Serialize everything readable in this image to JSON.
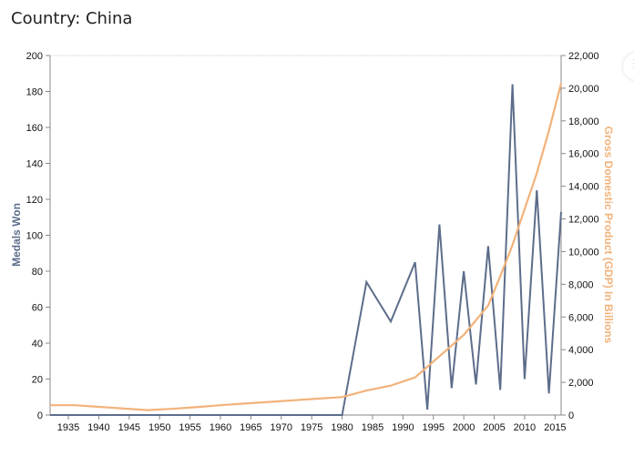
{
  "page_title": "Country: China",
  "side_handle_icon": "ellipsis-icon",
  "side_handle_glyph": "⋮",
  "chart_data": {
    "type": "line",
    "x_range": [
      1932,
      2016
    ],
    "x_ticks": [
      1935,
      1940,
      1945,
      1950,
      1955,
      1960,
      1965,
      1970,
      1975,
      1980,
      1985,
      1990,
      1995,
      2000,
      2005,
      2010,
      2015
    ],
    "y_left": {
      "label": "Medals Won",
      "range": [
        0,
        200
      ],
      "ticks": [
        0,
        20,
        40,
        60,
        80,
        100,
        120,
        140,
        160,
        180,
        200
      ]
    },
    "y_right": {
      "label": "Gross Domestic Product (GDP) In Billions",
      "range": [
        0,
        22000
      ],
      "ticks": [
        "0",
        "2,000",
        "4,000",
        "6,000",
        "8,000",
        "10,000",
        "12,000",
        "14,000",
        "16,000",
        "18,000",
        "20,000",
        "22,000"
      ]
    },
    "grid_top": true,
    "series": [
      {
        "axis": "left",
        "color": "#5d6d8a",
        "x": [
          1932,
          1936,
          1948,
          1952,
          1956,
          1960,
          1964,
          1968,
          1972,
          1976,
          1980,
          1984,
          1988,
          1992,
          1994,
          1996,
          1998,
          2000,
          2002,
          2004,
          2006,
          2008,
          2010,
          2012,
          2014,
          2016
        ],
        "y": [
          0,
          0,
          0,
          0,
          0,
          0,
          0,
          0,
          0,
          0,
          0,
          74,
          52,
          85,
          3,
          106,
          15,
          80,
          17,
          94,
          14,
          184,
          20,
          125,
          12,
          113
        ]
      },
      {
        "axis": "right",
        "color": "#f2b27a",
        "x": [
          1932,
          1936,
          1940,
          1948,
          1952,
          1956,
          1960,
          1964,
          1968,
          1972,
          1976,
          1980,
          1984,
          1988,
          1992,
          1996,
          2000,
          2004,
          2006,
          2008,
          2010,
          2012,
          2014,
          2016
        ],
        "y": [
          600,
          600,
          500,
          300,
          380,
          480,
          600,
          700,
          800,
          900,
          1000,
          1100,
          1500,
          1800,
          2300,
          3600,
          4900,
          6700,
          8500,
          10400,
          12600,
          14800,
          17400,
          20300
        ]
      }
    ]
  }
}
